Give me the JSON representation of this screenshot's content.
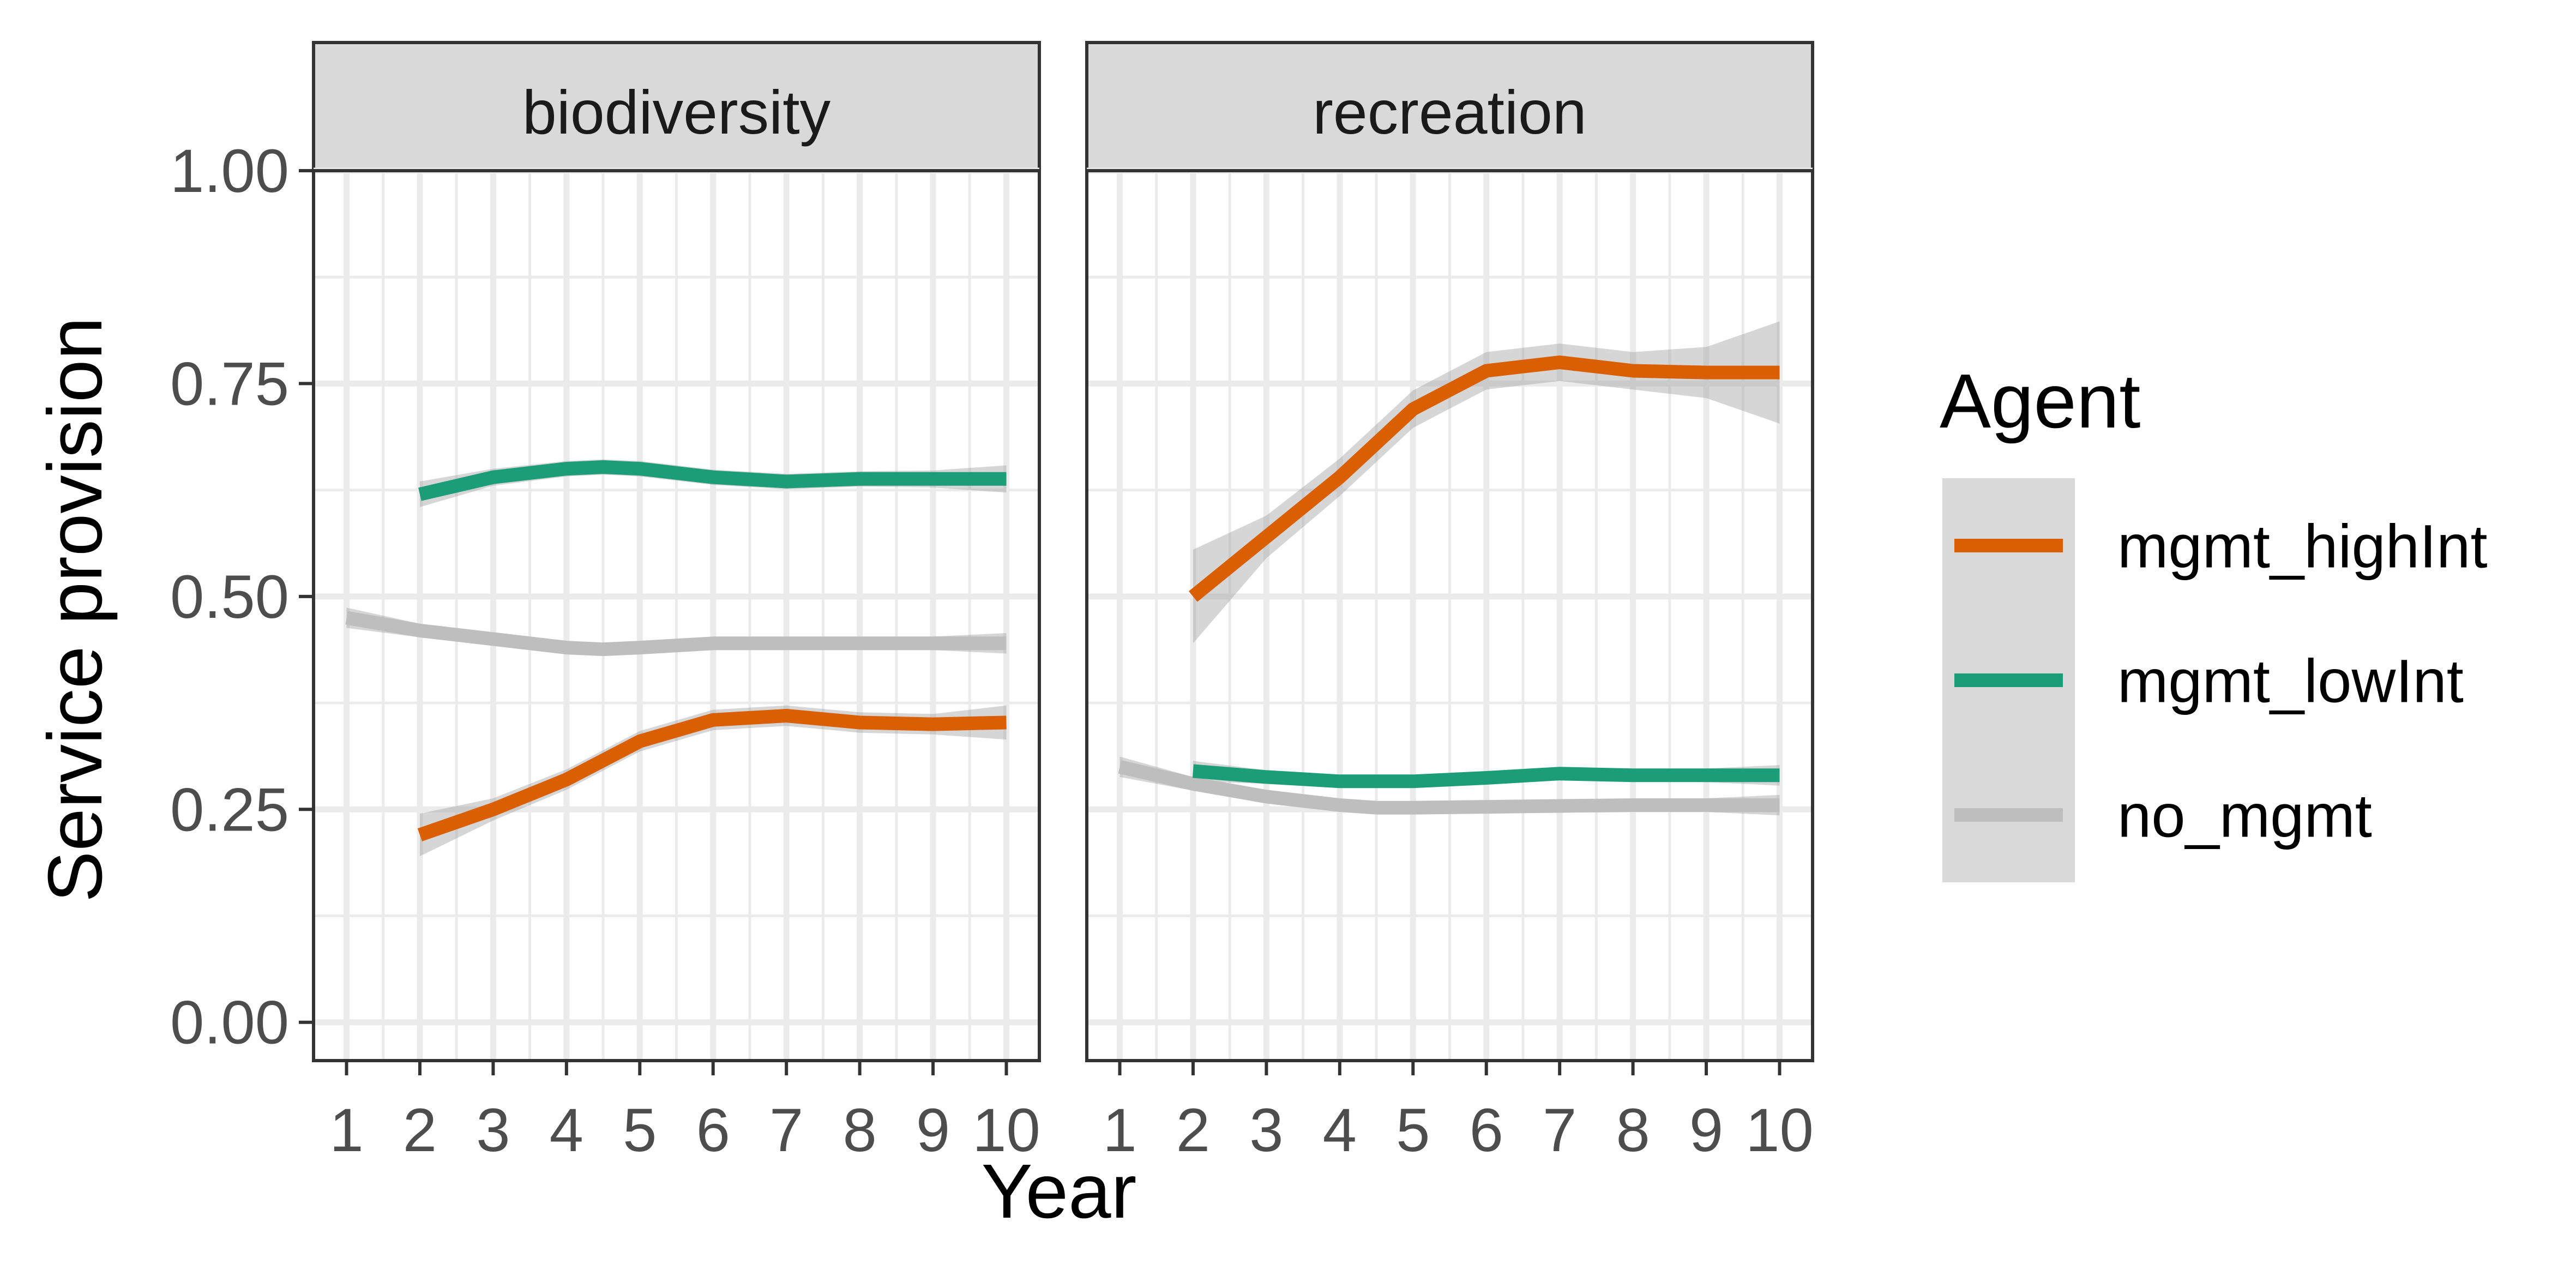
{
  "chart_data": {
    "type": "line",
    "title": "",
    "xlabel": "Year",
    "ylabel": "Service provision",
    "x_ticks": [
      1,
      2,
      3,
      4,
      5,
      6,
      7,
      8,
      9,
      10
    ],
    "y_ticks": [
      0.0,
      0.25,
      0.5,
      0.75,
      1.0
    ],
    "y_tick_labels": [
      "0.00",
      "0.25",
      "0.50",
      "0.75",
      "1.00"
    ],
    "xlim": [
      0.55,
      10.45
    ],
    "ylim": [
      -0.045,
      1.0
    ],
    "grid": true,
    "legend": {
      "title": "Agent",
      "position": "right"
    },
    "colors": {
      "mgmt_highInt": "#D95F02",
      "mgmt_lowInt": "#1B9E77",
      "no_mgmt": "#BEBEBE",
      "ribbon": "#999999",
      "strip_fill": "#D9D9D9",
      "grid": "#EBEBEB"
    },
    "series_order": [
      "mgmt_highInt",
      "mgmt_lowInt",
      "no_mgmt"
    ],
    "panels": [
      {
        "strip": "biodiversity",
        "series": [
          {
            "name": "no_mgmt",
            "x": [
              1,
              2,
              3,
              4,
              4.5,
              5,
              6,
              7,
              8,
              9,
              10
            ],
            "y": [
              0.475,
              0.46,
              0.45,
              0.44,
              0.438,
              0.44,
              0.445,
              0.445,
              0.445,
              0.445,
              0.445
            ],
            "se": [
              0.012,
              0.008,
              0.007,
              0.007,
              0.007,
              0.007,
              0.007,
              0.007,
              0.007,
              0.008,
              0.012
            ]
          },
          {
            "name": "mgmt_lowInt",
            "x": [
              2,
              3,
              4,
              4.5,
              5,
              6,
              7,
              8,
              9,
              10
            ],
            "y": [
              0.62,
              0.64,
              0.65,
              0.652,
              0.65,
              0.64,
              0.635,
              0.638,
              0.638,
              0.638
            ],
            "se": [
              0.015,
              0.01,
              0.009,
              0.009,
              0.009,
              0.009,
              0.009,
              0.009,
              0.01,
              0.016
            ]
          },
          {
            "name": "mgmt_highInt",
            "x": [
              2,
              3,
              4,
              5,
              6,
              7,
              8,
              9,
              10
            ],
            "y": [
              0.22,
              0.25,
              0.285,
              0.33,
              0.355,
              0.36,
              0.352,
              0.35,
              0.352
            ],
            "se": [
              0.025,
              0.013,
              0.012,
              0.012,
              0.012,
              0.012,
              0.012,
              0.012,
              0.02
            ]
          }
        ]
      },
      {
        "strip": "recreation",
        "series": [
          {
            "name": "no_mgmt",
            "x": [
              1,
              2,
              3,
              4,
              4.5,
              5,
              6,
              7,
              8,
              9,
              10
            ],
            "y": [
              0.3,
              0.28,
              0.265,
              0.255,
              0.252,
              0.252,
              0.253,
              0.254,
              0.255,
              0.255,
              0.255
            ],
            "se": [
              0.012,
              0.008,
              0.007,
              0.007,
              0.007,
              0.007,
              0.007,
              0.007,
              0.007,
              0.008,
              0.012
            ]
          },
          {
            "name": "mgmt_lowInt",
            "x": [
              2,
              3,
              4,
              5,
              6,
              7,
              8,
              9,
              10
            ],
            "y": [
              0.295,
              0.288,
              0.283,
              0.283,
              0.287,
              0.292,
              0.29,
              0.29,
              0.29
            ],
            "se": [
              0.012,
              0.008,
              0.007,
              0.007,
              0.007,
              0.007,
              0.007,
              0.008,
              0.012
            ]
          },
          {
            "name": "mgmt_highInt",
            "x": [
              2,
              3,
              4,
              5,
              6,
              7,
              8,
              9,
              10
            ],
            "y": [
              0.5,
              0.57,
              0.64,
              0.72,
              0.765,
              0.775,
              0.765,
              0.763,
              0.763
            ],
            "se": [
              0.055,
              0.025,
              0.022,
              0.022,
              0.022,
              0.022,
              0.022,
              0.03,
              0.06
            ]
          }
        ]
      }
    ]
  }
}
